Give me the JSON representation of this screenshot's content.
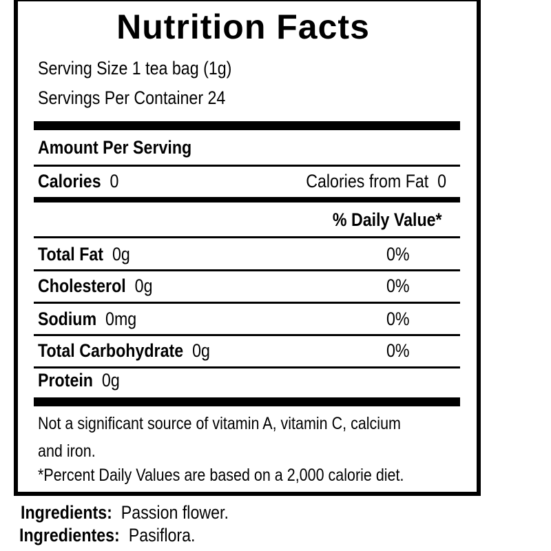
{
  "title": "Nutrition Facts",
  "serving_size": "Serving Size 1 tea bag (1g)",
  "servings_per_container": "Servings Per Container 24",
  "amount_per_serving": "Amount Per Serving",
  "calories": {
    "label": "Calories",
    "value": "0"
  },
  "calories_from_fat": {
    "label": "Calories from Fat",
    "value": "0"
  },
  "daily_value_header": "% Daily Value*",
  "nutrients": [
    {
      "name": "Total Fat",
      "amount": "0g",
      "dv": "0%"
    },
    {
      "name": "Cholesterol",
      "amount": "0g",
      "dv": "0%"
    },
    {
      "name": "Sodium",
      "amount": "0mg",
      "dv": "0%"
    },
    {
      "name": "Total Carbohydrate",
      "amount": "0g",
      "dv": "0%"
    },
    {
      "name": "Protein",
      "amount": "0g",
      "dv": ""
    }
  ],
  "footnote_line1": "Not a significant source of vitamin A, vitamin C, calcium",
  "footnote_line2": "and iron.",
  "footnote_dv": "*Percent Daily Values are based on a 2,000 calorie diet.",
  "ingredients": {
    "label": "Ingredients:",
    "value": "Passion flower."
  },
  "ingredientes": {
    "label": "Ingredientes:",
    "value": "Pasiflora."
  }
}
